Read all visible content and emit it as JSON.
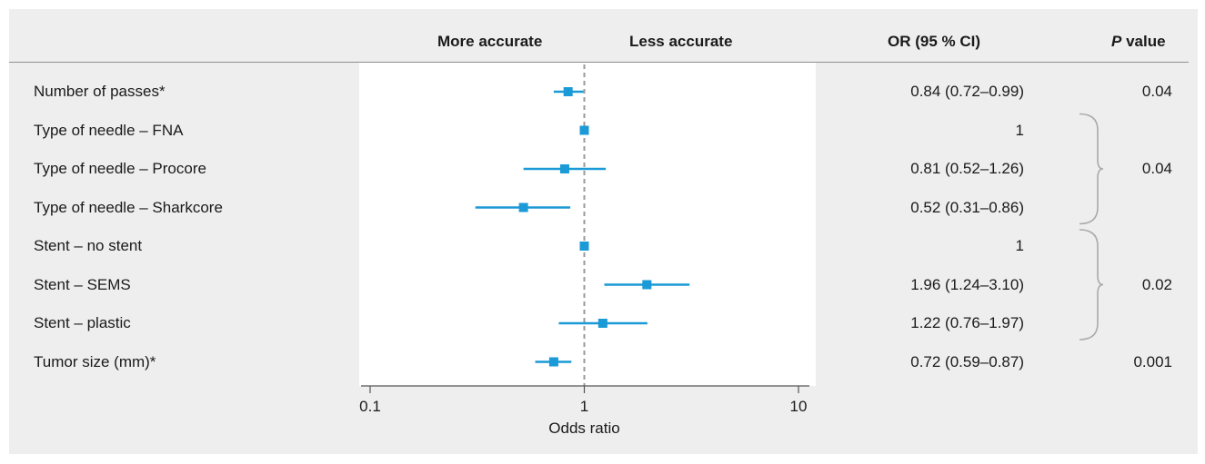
{
  "headers": {
    "more_accurate": "More accurate",
    "less_accurate": "Less accurate",
    "or_ci": "OR (95 % CI)",
    "p_value_italic": "P",
    "p_value_rest": " value"
  },
  "colors": {
    "marker": "#1a9ad6",
    "ref_line": "#999999",
    "axis": "#555555",
    "bracket": "#aaaaaa",
    "panel_bg": "#eeeeee"
  },
  "chart_data": {
    "type": "forest",
    "scale": "log",
    "xlim": [
      0.1,
      10
    ],
    "xticks": [
      {
        "value": 0.1,
        "label": "0.1"
      },
      {
        "value": 1,
        "label": "1"
      },
      {
        "value": 10,
        "label": "10"
      }
    ],
    "xlabel": "Odds ratio",
    "reference_value": 1,
    "rows": [
      {
        "label": "Number of passes*",
        "or": 0.84,
        "lo": 0.72,
        "hi": 0.99,
        "or_text": "0.84 (0.72–0.99)",
        "p_text": "0.04"
      },
      {
        "label": "Type of needle – FNA",
        "or": 1,
        "lo": 1,
        "hi": 1,
        "or_text": "1",
        "p_text": ""
      },
      {
        "label": "Type of needle – Procore",
        "or": 0.81,
        "lo": 0.52,
        "hi": 1.26,
        "or_text": "0.81 (0.52–1.26)",
        "p_text": ""
      },
      {
        "label": "Type of needle – Sharkcore",
        "or": 0.52,
        "lo": 0.31,
        "hi": 0.86,
        "or_text": "0.52 (0.31–0.86)",
        "p_text": ""
      },
      {
        "label": "Stent – no stent",
        "or": 1,
        "lo": 1,
        "hi": 1,
        "or_text": "1",
        "p_text": ""
      },
      {
        "label": "Stent – SEMS",
        "or": 1.96,
        "lo": 1.24,
        "hi": 3.1,
        "or_text": "1.96 (1.24–3.10)",
        "p_text": ""
      },
      {
        "label": "Stent – plastic",
        "or": 1.22,
        "lo": 0.76,
        "hi": 1.97,
        "or_text": "1.22 (0.76–1.97)",
        "p_text": ""
      },
      {
        "label": "Tumor size (mm)*",
        "or": 0.72,
        "lo": 0.59,
        "hi": 0.87,
        "or_text": "0.72 (0.59–0.87)",
        "p_text": "0.001"
      }
    ],
    "groups": [
      {
        "first_row": 1,
        "last_row": 3,
        "p_text": "0.04"
      },
      {
        "first_row": 4,
        "last_row": 6,
        "p_text": "0.02"
      }
    ]
  }
}
